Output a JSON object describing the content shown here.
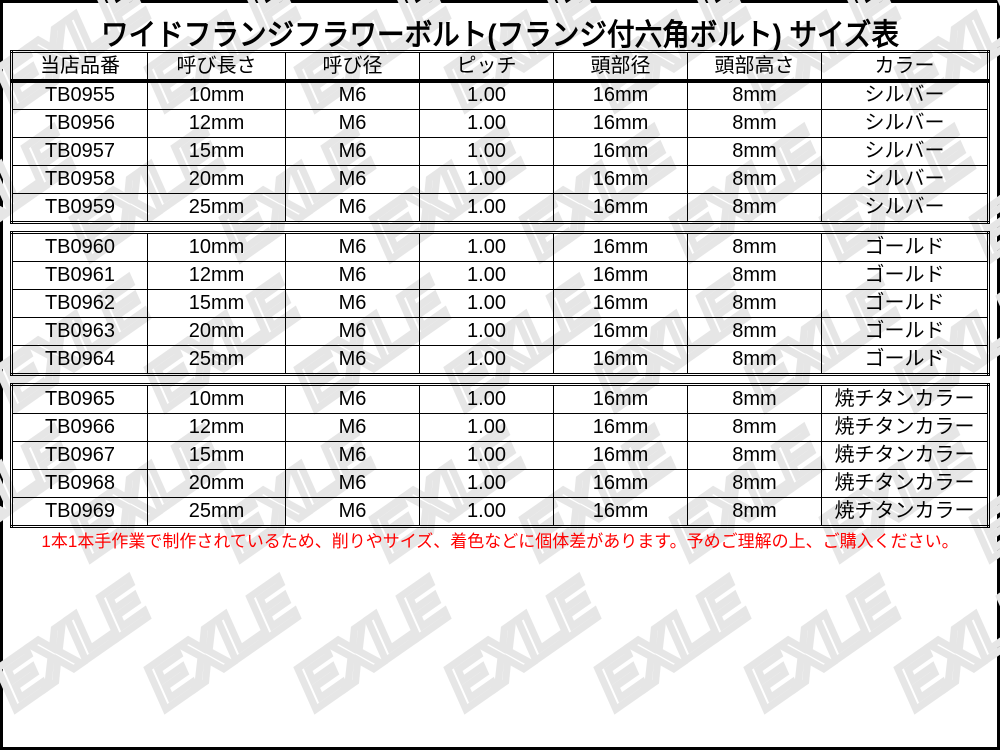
{
  "title": "ワイドフランジフラワーボルト(フランジ付六角ボルト) サイズ表",
  "watermark": "EXLE",
  "columns": [
    "当店品番",
    "呼び長さ",
    "呼び径",
    "ピッチ",
    "頭部径",
    "頭部高さ",
    "カラー"
  ],
  "groups": [
    [
      [
        "TB0955",
        "10mm",
        "M6",
        "1.00",
        "16mm",
        "8mm",
        "シルバー"
      ],
      [
        "TB0956",
        "12mm",
        "M6",
        "1.00",
        "16mm",
        "8mm",
        "シルバー"
      ],
      [
        "TB0957",
        "15mm",
        "M6",
        "1.00",
        "16mm",
        "8mm",
        "シルバー"
      ],
      [
        "TB0958",
        "20mm",
        "M6",
        "1.00",
        "16mm",
        "8mm",
        "シルバー"
      ],
      [
        "TB0959",
        "25mm",
        "M6",
        "1.00",
        "16mm",
        "8mm",
        "シルバー"
      ]
    ],
    [
      [
        "TB0960",
        "10mm",
        "M6",
        "1.00",
        "16mm",
        "8mm",
        "ゴールド"
      ],
      [
        "TB0961",
        "12mm",
        "M6",
        "1.00",
        "16mm",
        "8mm",
        "ゴールド"
      ],
      [
        "TB0962",
        "15mm",
        "M6",
        "1.00",
        "16mm",
        "8mm",
        "ゴールド"
      ],
      [
        "TB0963",
        "20mm",
        "M6",
        "1.00",
        "16mm",
        "8mm",
        "ゴールド"
      ],
      [
        "TB0964",
        "25mm",
        "M6",
        "1.00",
        "16mm",
        "8mm",
        "ゴールド"
      ]
    ],
    [
      [
        "TB0965",
        "10mm",
        "M6",
        "1.00",
        "16mm",
        "8mm",
        "焼チタンカラー"
      ],
      [
        "TB0966",
        "12mm",
        "M6",
        "1.00",
        "16mm",
        "8mm",
        "焼チタンカラー"
      ],
      [
        "TB0967",
        "15mm",
        "M6",
        "1.00",
        "16mm",
        "8mm",
        "焼チタンカラー"
      ],
      [
        "TB0968",
        "20mm",
        "M6",
        "1.00",
        "16mm",
        "8mm",
        "焼チタンカラー"
      ],
      [
        "TB0969",
        "25mm",
        "M6",
        "1.00",
        "16mm",
        "8mm",
        "焼チタンカラー"
      ]
    ]
  ],
  "note": "1本1本手作業で制作されているため、削りやサイズ、着色などに個体差があります。予めご理解の上、ご購入ください。",
  "colors": {
    "note": "#ff0000",
    "watermark": "#e6e6e6"
  }
}
